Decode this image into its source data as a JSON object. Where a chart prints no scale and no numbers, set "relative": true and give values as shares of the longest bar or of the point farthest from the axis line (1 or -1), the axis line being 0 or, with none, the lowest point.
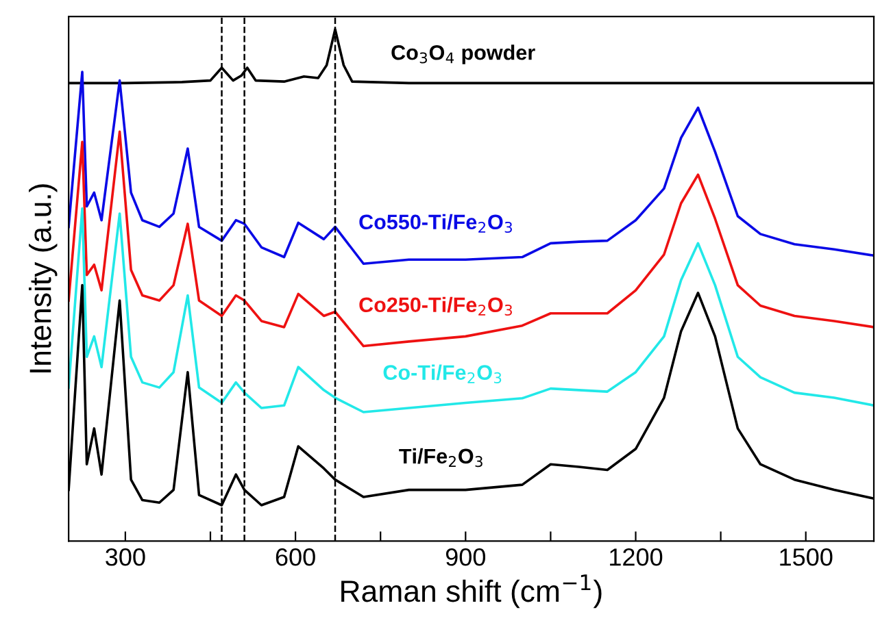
{
  "chart_data": {
    "type": "line",
    "relative": true,
    "xlabel": "Raman shift (cm$^{−1}$)",
    "ylabel": "Intensity (a.u.)",
    "x": [
      200,
      224,
      232,
      245,
      258,
      290,
      310,
      330,
      360,
      385,
      410,
      430,
      470,
      495,
      510,
      540,
      580,
      605,
      650,
      670,
      720,
      800,
      900,
      1000,
      1050,
      1100,
      1150,
      1200,
      1250,
      1280,
      1310,
      1340,
      1380,
      1420,
      1480,
      1550,
      1620
    ],
    "xlim": [
      200,
      1620
    ],
    "xticks": [
      300,
      {
        "value": 450,
        "label": null
      },
      600,
      {
        "value": 750,
        "label": null
      },
      900,
      {
        "value": 1050,
        "label": null
      },
      1200,
      {
        "value": 1350,
        "label": null
      },
      1500
    ],
    "tick_labels": "x",
    "grid": false,
    "legend": false,
    "line_style": "solid",
    "marker": "none",
    "series": [
      {
        "name": "Co$_{3}$O$_{4}$ powder",
        "color": "#000000",
        "x": [
          200,
          300,
          400,
          450,
          470,
          490,
          505,
          515,
          530,
          580,
          615,
          640,
          655,
          670,
          685,
          700,
          800,
          1000,
          1200,
          1400,
          1620
        ],
        "values": [
          0.895,
          0.895,
          0.897,
          0.9,
          0.925,
          0.9,
          0.91,
          0.925,
          0.9,
          0.898,
          0.908,
          0.905,
          0.93,
          1.0,
          0.93,
          0.898,
          0.895,
          0.895,
          0.895,
          0.895,
          0.895
        ]
      },
      {
        "name": "Co550-Ti/Fe$_{2}$O$_{3}$",
        "color": "#0a0ae6",
        "values": [
          0.614,
          0.917,
          0.654,
          0.681,
          0.627,
          0.9,
          0.681,
          0.627,
          0.614,
          0.64,
          0.767,
          0.614,
          0.587,
          0.627,
          0.62,
          0.574,
          0.555,
          0.622,
          0.59,
          0.614,
          0.542,
          0.55,
          0.55,
          0.555,
          0.582,
          0.585,
          0.587,
          0.627,
          0.689,
          0.788,
          0.847,
          0.761,
          0.635,
          0.6,
          0.58,
          0.57,
          0.558
        ]
      },
      {
        "name": "Co250-Ti/Fe$_{2}$O$_{3}$",
        "color": "#ee1111",
        "values": [
          0.47,
          0.78,
          0.52,
          0.54,
          0.49,
          0.8,
          0.53,
          0.48,
          0.47,
          0.5,
          0.62,
          0.47,
          0.44,
          0.48,
          0.47,
          0.43,
          0.418,
          0.483,
          0.44,
          0.448,
          0.381,
          0.39,
          0.4,
          0.421,
          0.445,
          0.445,
          0.445,
          0.49,
          0.56,
          0.66,
          0.716,
          0.63,
          0.5,
          0.46,
          0.44,
          0.43,
          0.418
        ]
      },
      {
        "name": "Co-Ti/Fe$_{2}$O$_{3}$",
        "color": "#22e8e8",
        "values": [
          0.3,
          0.65,
          0.36,
          0.4,
          0.34,
          0.64,
          0.36,
          0.31,
          0.3,
          0.33,
          0.48,
          0.3,
          0.27,
          0.31,
          0.29,
          0.26,
          0.265,
          0.34,
          0.295,
          0.28,
          0.252,
          0.26,
          0.27,
          0.279,
          0.298,
          0.295,
          0.292,
          0.33,
          0.4,
          0.51,
          0.582,
          0.5,
          0.36,
          0.32,
          0.29,
          0.28,
          0.265
        ]
      },
      {
        "name": "Ti/Fe$_{2}$O$_{3}$",
        "color": "#000000",
        "values": [
          0.1,
          0.5,
          0.15,
          0.22,
          0.13,
          0.47,
          0.12,
          0.08,
          0.075,
          0.1,
          0.33,
          0.09,
          0.07,
          0.13,
          0.1,
          0.07,
          0.086,
          0.185,
          0.142,
          0.12,
          0.086,
          0.1,
          0.1,
          0.11,
          0.15,
          0.145,
          0.139,
          0.18,
          0.28,
          0.41,
          0.485,
          0.4,
          0.22,
          0.15,
          0.12,
          0.1,
          0.083
        ]
      }
    ],
    "ref_lines": [
      {
        "axis": "x",
        "value": 470,
        "line_style": "dashed",
        "color": "#000000"
      },
      {
        "axis": "x",
        "value": 510,
        "line_style": "dashed",
        "color": "#000000"
      },
      {
        "axis": "x",
        "value": 670,
        "line_style": "dashed",
        "color": "#000000"
      }
    ]
  }
}
